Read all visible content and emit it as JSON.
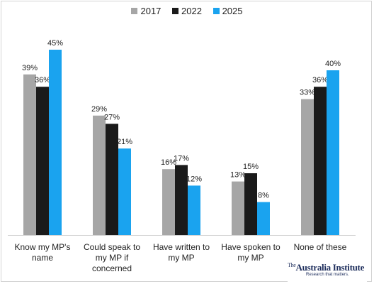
{
  "chart_data": {
    "type": "bar",
    "title": "",
    "xlabel": "",
    "ylabel": "",
    "ylim": [
      0,
      50
    ],
    "grid": false,
    "legend_position": "top-center",
    "categories": [
      [
        "Know my MP's",
        "name"
      ],
      [
        "Could speak to",
        "my MP if",
        "concerned"
      ],
      [
        "Have written to",
        "my MP"
      ],
      [
        "Have spoken to",
        "my MP"
      ],
      [
        "None of these"
      ]
    ],
    "series": [
      {
        "name": "2017",
        "color": "#a6a6a6",
        "values": [
          39,
          29,
          16,
          13,
          33
        ],
        "labels": [
          "39%",
          "29%",
          "16%",
          "13%",
          "33%"
        ]
      },
      {
        "name": "2022",
        "color": "#1a1a1a",
        "values": [
          36,
          27,
          17,
          15,
          36
        ],
        "labels": [
          "36%",
          "27%",
          "17%",
          "15%",
          "36%"
        ]
      },
      {
        "name": "2025",
        "color": "#1aa3ef",
        "values": [
          45,
          21,
          12,
          8,
          40
        ],
        "labels": [
          "45%",
          "21%",
          "12%",
          "8%",
          "40%"
        ]
      }
    ]
  },
  "brand": {
    "prefix": "The",
    "name": "Australia Institute",
    "tagline": "Research that matters."
  }
}
